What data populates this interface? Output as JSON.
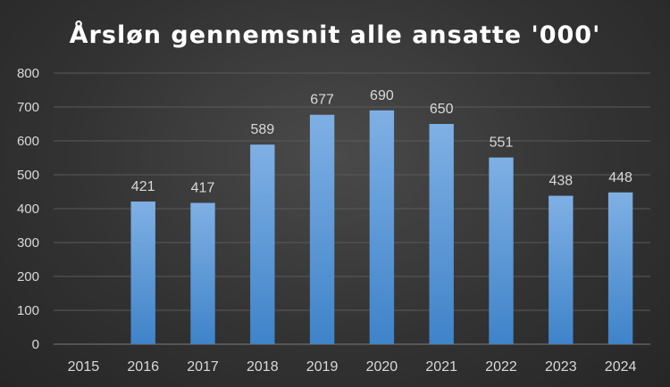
{
  "chart_data": {
    "type": "bar",
    "title": "Årsløn gennemsnit alle ansatte '000'",
    "xlabel": "",
    "ylabel": "",
    "categories": [
      "2015",
      "2016",
      "2017",
      "2018",
      "2019",
      "2020",
      "2021",
      "2022",
      "2023",
      "2024"
    ],
    "values": [
      null,
      421,
      417,
      589,
      677,
      690,
      650,
      551,
      438,
      448
    ],
    "ylim": [
      0,
      800
    ],
    "yticks": [
      0,
      100,
      200,
      300,
      400,
      500,
      600,
      700,
      800
    ],
    "grid": true,
    "legend": "none",
    "colors": {
      "bar_light": "#7fb0e4",
      "bar_dark": "#3f83c9",
      "background": "#333333",
      "text": "#d9d9d9",
      "title": "#ffffff"
    }
  }
}
